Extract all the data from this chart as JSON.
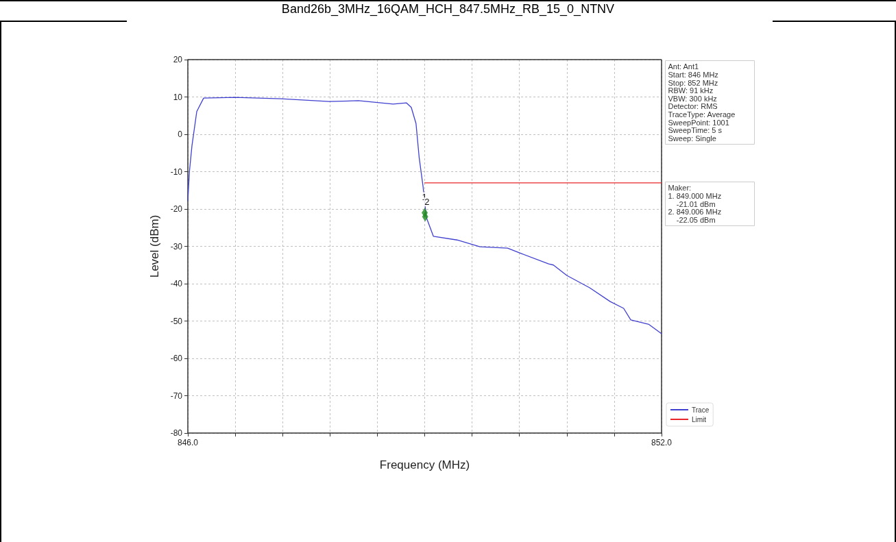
{
  "chart_data": {
    "type": "line",
    "title": "Band26b_3MHz_16QAM_HCH_847.5MHz_RB_15_0_NTNV",
    "xlabel": "Frequency (MHz)",
    "ylabel": "Level (dBm)",
    "series": [
      {
        "name": "Trace",
        "color": "#3f3fd0",
        "x": [
          846.0,
          846.02,
          846.052,
          846.113,
          846.2,
          846.6,
          847.18,
          847.79,
          848.16,
          848.6,
          848.77,
          848.83,
          848.89,
          848.93,
          848.98,
          849.02,
          849.11,
          849.41,
          849.7,
          850.05,
          850.22,
          850.57,
          850.63,
          850.8,
          851.09,
          851.35,
          851.52,
          851.61,
          851.84,
          852.0
        ],
        "values": [
          -17.8,
          -10,
          -3.1,
          6.1,
          9.7,
          9.9,
          9.5,
          8.8,
          9.0,
          8.1,
          8.4,
          7.2,
          2.9,
          -6.2,
          -14.1,
          -22.2,
          -27.3,
          -28.3,
          -30.1,
          -30.5,
          -31.9,
          -34.7,
          -35.0,
          -37.8,
          -41.1,
          -44.8,
          -46.6,
          -49.7,
          -50.9,
          -53.4
        ]
      },
      {
        "name": "Limit",
        "color": "#e8262b",
        "x": [
          849.0,
          852.0
        ],
        "values": [
          -13,
          -13
        ]
      },
      {
        "type": "scatter",
        "color": "#1f8a1f",
        "marker": "diamond",
        "x": [
          849.0,
          849.006
        ],
        "values": [
          -21.01,
          -22.05
        ]
      }
    ],
    "xlim": [
      846.0,
      852.0
    ],
    "xticks": [
      {
        "value": 846.0,
        "label": "846.0"
      },
      {
        "value": 846.6,
        "label": null
      },
      {
        "value": 847.2,
        "label": null
      },
      {
        "value": 847.8,
        "label": null
      },
      {
        "value": 848.4,
        "label": null
      },
      {
        "value": 849.0,
        "label": null
      },
      {
        "value": 849.6,
        "label": null
      },
      {
        "value": 850.2,
        "label": null
      },
      {
        "value": 850.8,
        "label": null
      },
      {
        "value": 851.4,
        "label": null
      },
      {
        "value": 852.0,
        "label": "852.0"
      }
    ],
    "ylim": [
      -80,
      20
    ],
    "yticks": [
      -80,
      -70,
      -60,
      -50,
      -40,
      -30,
      -20,
      -10,
      0,
      10,
      20
    ],
    "grid": true,
    "legend": "bottom right",
    "marker": "none",
    "line_style": "solid",
    "annotations": [
      {
        "text": "1",
        "x": 849.0,
        "y": -21.01
      },
      {
        "text": "2",
        "x": 849.006,
        "y": -22.05
      },
      "Ant: Ant1\nStart: 846 MHz\nStop: 852 MHz\nRBW: 91 kHz\nVBW: 300 kHz\nDetector: RMS\nTraceType: Average\nSweepPoint: 1001\nSweepTime: 5 s\nSweep: Single",
      "Maker:\n1. 849.000 MHz\n    -21.01 dBm\n2. 849.006 MHz\n    -22.05 dBm"
    ]
  }
}
